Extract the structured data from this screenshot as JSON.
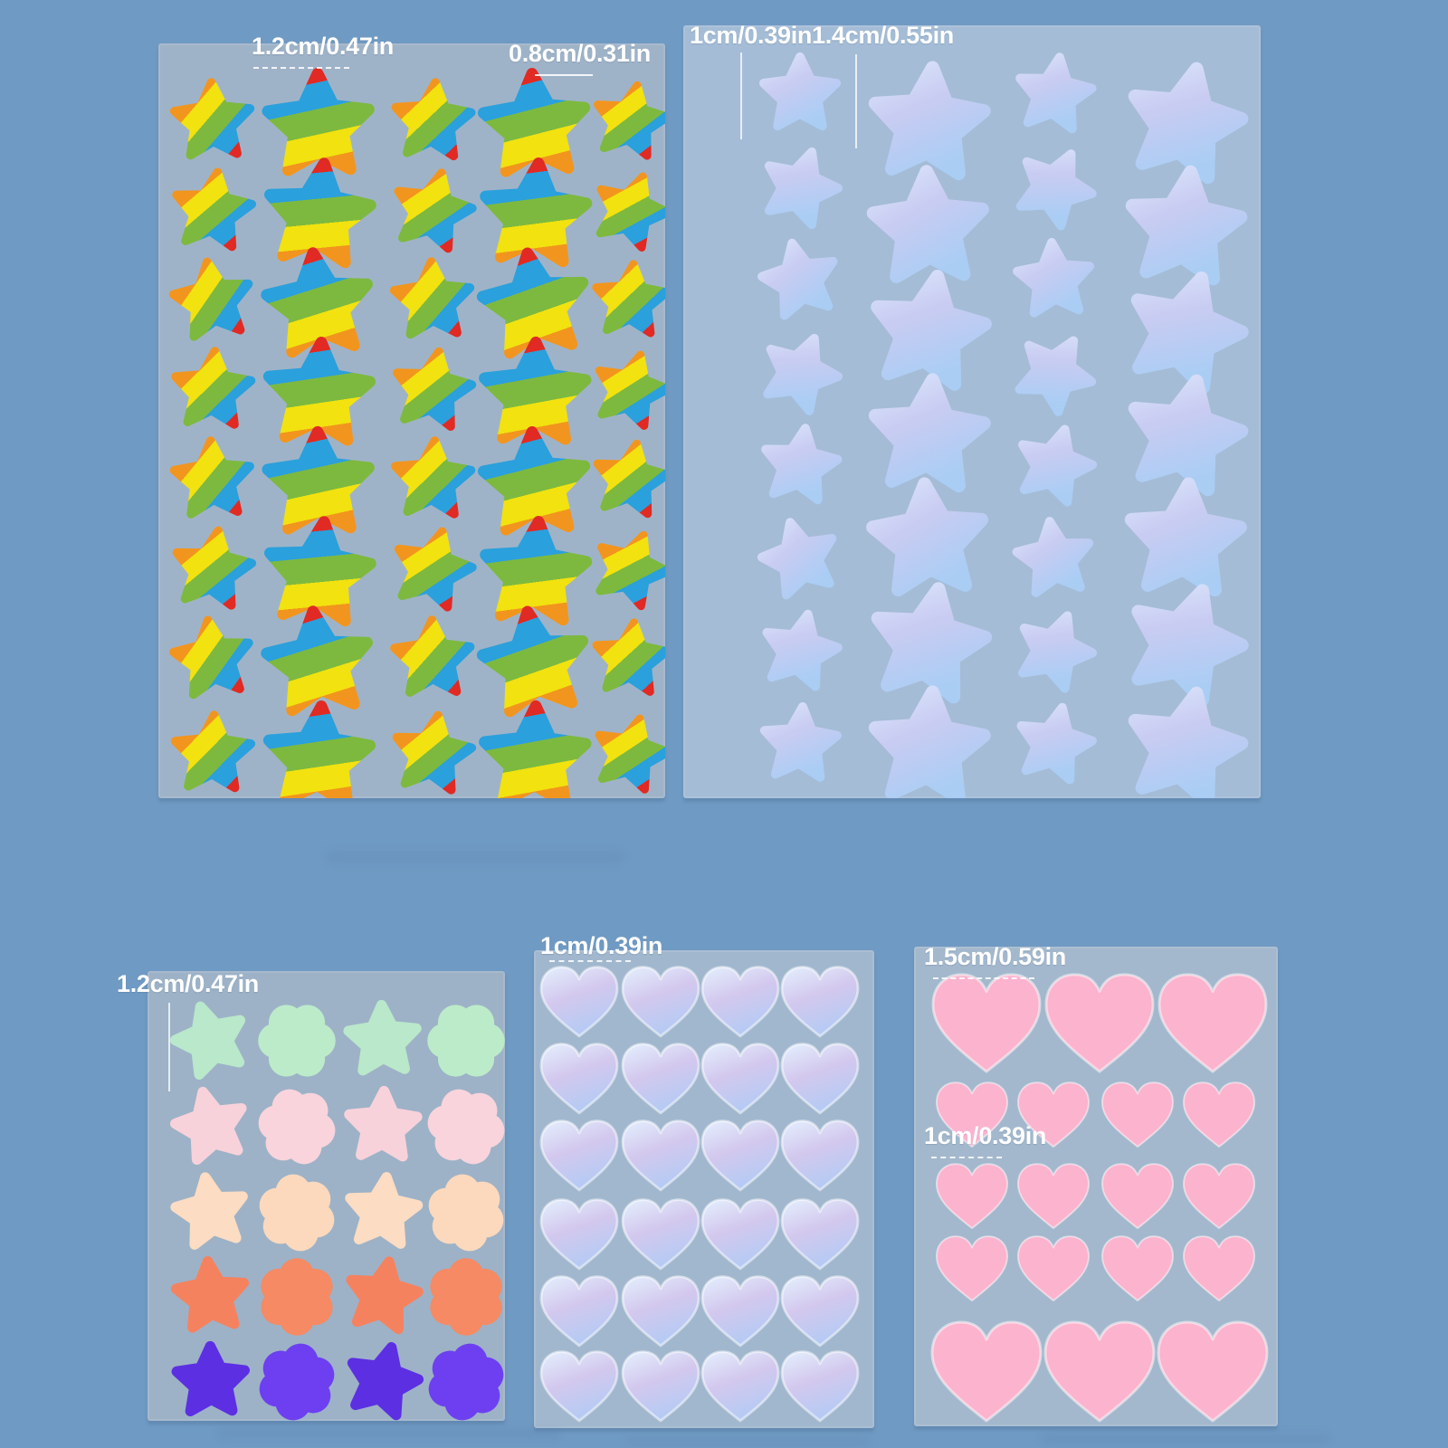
{
  "page": {
    "background_color": "#6f9ac3",
    "label_text_color": "#ffffff"
  },
  "sheets": [
    {
      "id": "rainbow-stars",
      "shape": "star",
      "style": "rainbow-stripes",
      "panel_color": "#9fb3c8",
      "labels": [
        {
          "text": "1.2cm/0.47in",
          "for": "large-star"
        },
        {
          "text": "0.8cm/0.31in",
          "for": "small-star"
        }
      ],
      "grid": {
        "rows": 8,
        "columns": 5,
        "column_pattern": [
          "small",
          "large",
          "small",
          "large",
          "small"
        ],
        "total_stickers": 40
      },
      "stripe_colors": {
        "red": "#e02a23",
        "blue": "#2aa0dc",
        "green": "#7db93f",
        "yellow": "#f2e20f",
        "orange": "#f2951e"
      }
    },
    {
      "id": "blue-stars",
      "shape": "star",
      "style": "blue-gradient",
      "panel_color": "#a4bcd6",
      "labels": [
        {
          "text": "1cm/0.39in",
          "for": "small-star"
        },
        {
          "text": "1.4cm/0.55in",
          "for": "large-star"
        }
      ],
      "grid": {
        "columns": 4,
        "column_pattern": [
          "small",
          "large",
          "small",
          "large"
        ],
        "rows_small": 8,
        "rows_large": 7,
        "total_stickers": 30
      },
      "gradient_colors": [
        "#dbe7fc",
        "#c9ccf2",
        "#aacdf4"
      ]
    },
    {
      "id": "pastel-stars-flowers",
      "shape": "star-and-flower",
      "style": "pastel-solid",
      "panel_color": "#9db2c7",
      "labels": [
        {
          "text": "1.2cm/0.47in",
          "for": "sticker"
        }
      ],
      "grid": {
        "rows": 5,
        "columns": 4,
        "row_pattern": [
          "star",
          "flower",
          "star",
          "flower"
        ],
        "total_stickers": 20,
        "row_colors": [
          {
            "name": "mint",
            "star": "#b9e8ca",
            "flower": "#bcebc9"
          },
          {
            "name": "pink",
            "star": "#f8d2da",
            "flower": "#f9d4dc"
          },
          {
            "name": "peach",
            "star": "#fcdcc2",
            "flower": "#fcd9bd"
          },
          {
            "name": "coral",
            "star": "#f5825f",
            "flower": "#f58a64"
          },
          {
            "name": "purple",
            "star": "#5c2fe2",
            "flower": "#6d3ff0"
          }
        ]
      }
    },
    {
      "id": "blue-hearts",
      "shape": "heart",
      "style": "blue-gradient",
      "panel_color": "#a1b7ce",
      "labels": [
        {
          "text": "1cm/0.39in",
          "for": "heart"
        }
      ],
      "grid": {
        "rows": 6,
        "columns": 4,
        "total_stickers": 24
      },
      "gradient_colors": [
        "#e2ecfc",
        "#d3c8ee",
        "#b2cbf4"
      ]
    },
    {
      "id": "pink-hearts",
      "shape": "heart",
      "style": "pink-solid",
      "panel_color": "#a3b8cd",
      "labels": [
        {
          "text": "1.5cm/0.59in",
          "for": "large-heart"
        },
        {
          "text": "1cm/0.39in",
          "for": "small-heart"
        }
      ],
      "grid": {
        "row_pattern": [
          "large-3",
          "small-4",
          "small-4",
          "small-4",
          "large-3"
        ],
        "total_stickers": 18
      },
      "heart_color": "#fcb3cd"
    }
  ]
}
